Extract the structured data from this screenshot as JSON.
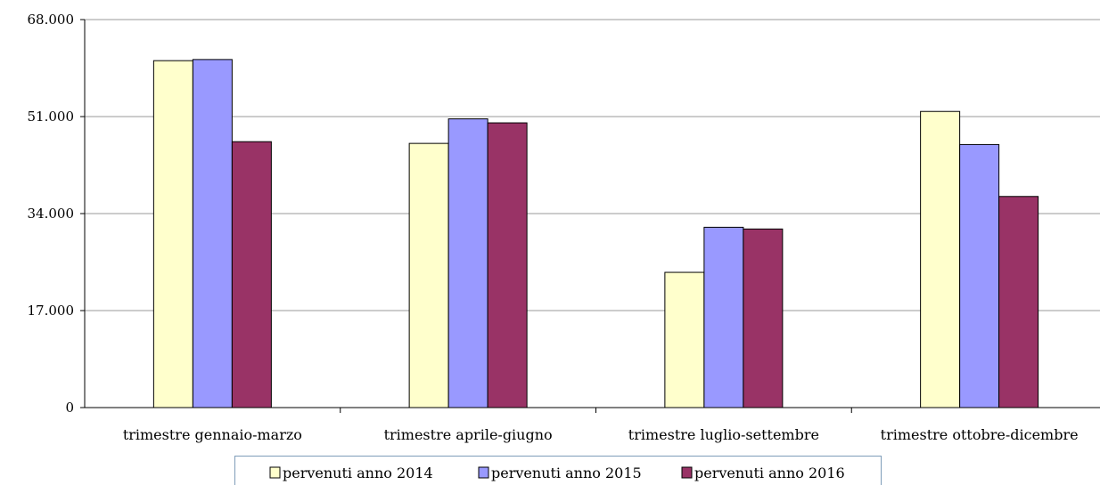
{
  "chart_data": {
    "type": "bar",
    "categories": [
      "trimestre gennaio-marzo",
      "trimestre aprile-giugno",
      "trimestre luglio-settembre",
      "trimestre ottobre-dicembre"
    ],
    "series": [
      {
        "name": "pervenuti anno 2014",
        "values": [
          60800,
          46300,
          23700,
          51900
        ],
        "color": "#ffffcc"
      },
      {
        "name": "pervenuti anno 2015",
        "values": [
          61000,
          50600,
          31600,
          46100
        ],
        "color": "#9999ff"
      },
      {
        "name": "pervenuti anno 2016",
        "values": [
          46600,
          49900,
          31300,
          37000
        ],
        "color": "#993366"
      }
    ],
    "yticks": [
      "0",
      "17.000",
      "34.000",
      "51.000",
      "68.000"
    ],
    "ylim": [
      0,
      68000
    ],
    "grid": true,
    "legend_position": "bottom"
  }
}
